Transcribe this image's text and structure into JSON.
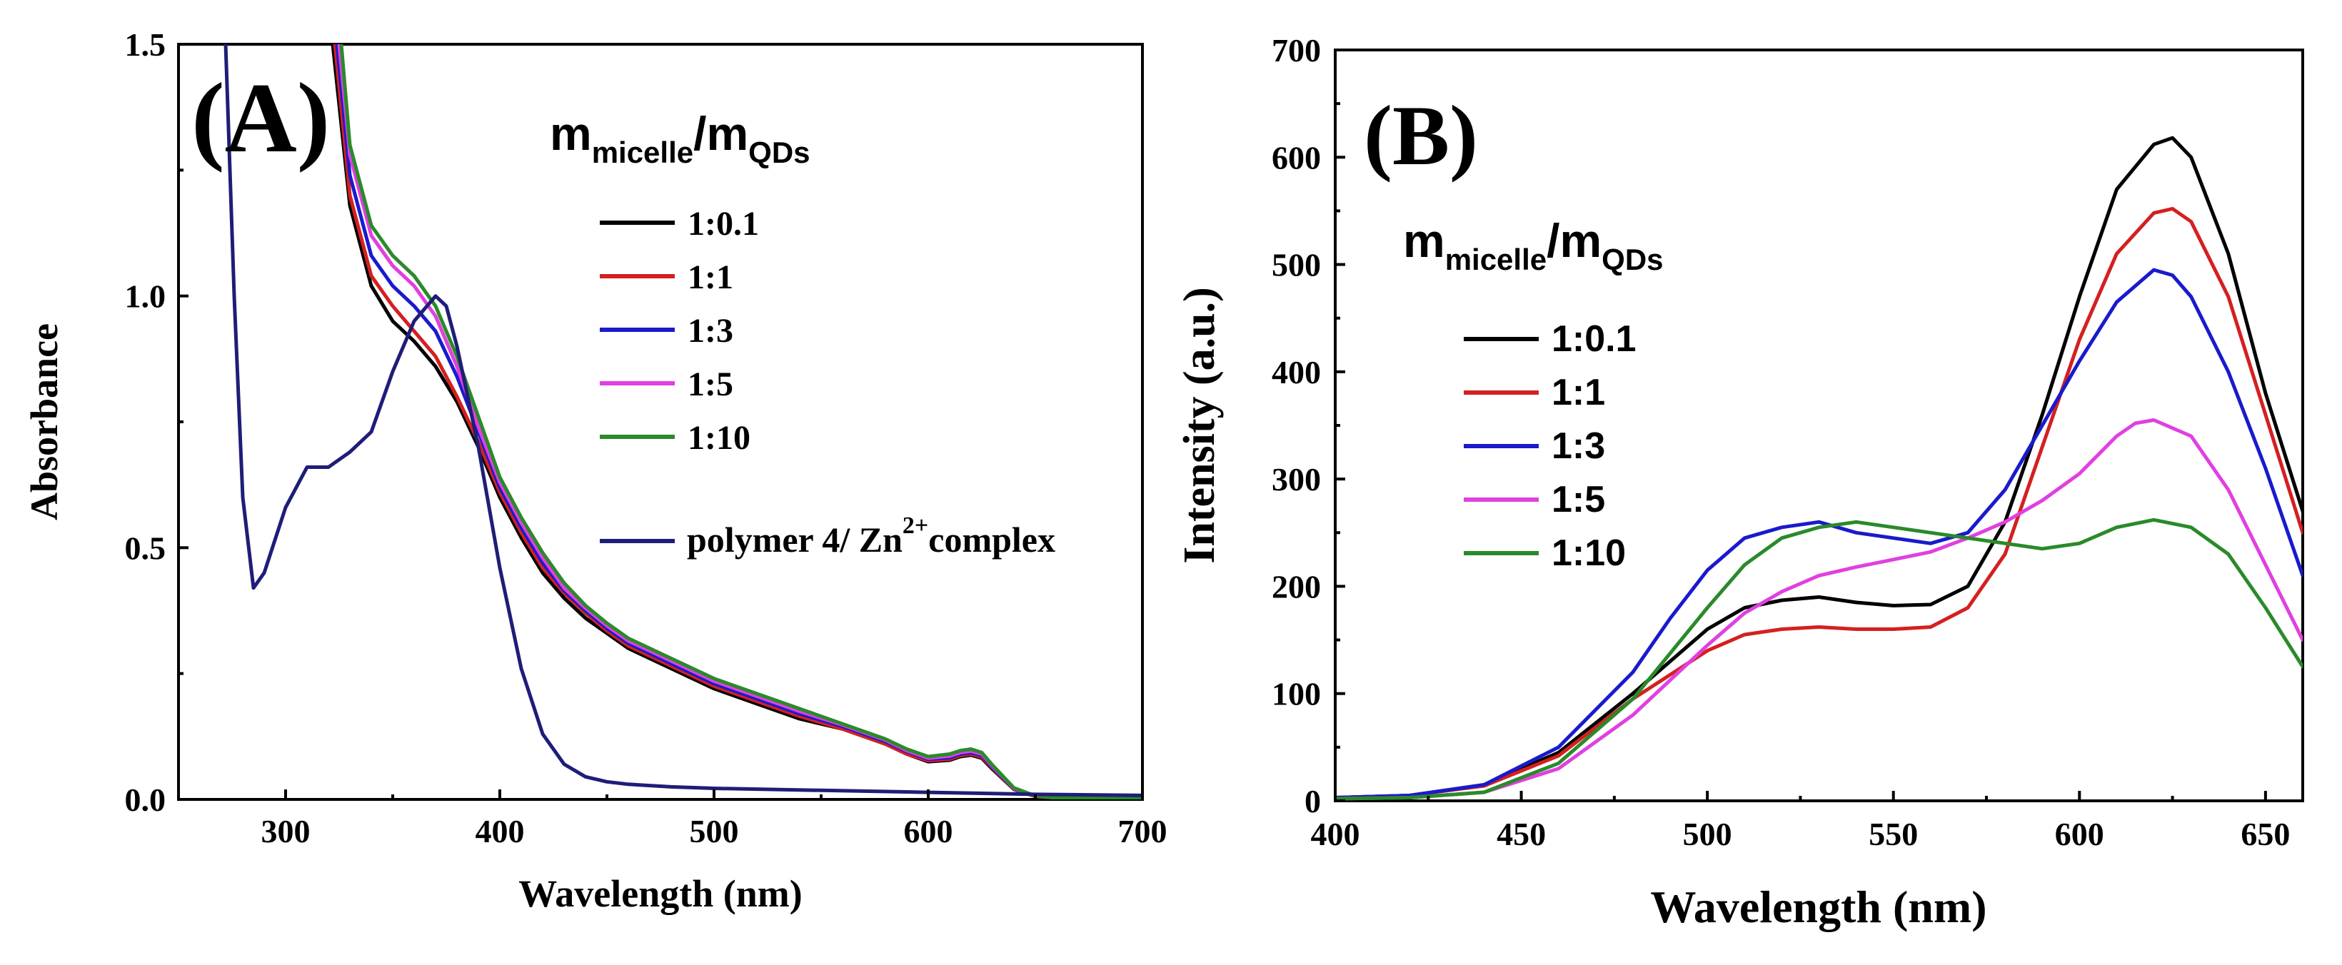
{
  "chart_data": [
    {
      "type": "line",
      "panel_label": "(A)",
      "xlabel": "Wavelength (nm)",
      "ylabel": "Absorbance",
      "xlim": [
        250,
        700
      ],
      "ylim": [
        0,
        1.5
      ],
      "xticks": [
        300,
        400,
        500,
        600,
        700
      ],
      "xtick_labels": [
        "300",
        "400",
        "500",
        "600",
        "700"
      ],
      "yticks": [
        0.0,
        0.5,
        1.0,
        1.5
      ],
      "ytick_labels": [
        "0.0",
        "0.5",
        "1.0",
        "1.5"
      ],
      "grid": false,
      "legend": {
        "title_main": "m",
        "title_sub1": "micelle",
        "title_slash": "/m",
        "title_sub2": "QDs",
        "placement": "top-right",
        "extra_label_main": "polymer 4/ Zn",
        "extra_label_sup": "2+",
        "extra_label_tail": "complex"
      },
      "series": [
        {
          "name": "1:0.1",
          "color": "#000000",
          "x": [
            322,
            330,
            340,
            350,
            360,
            370,
            380,
            390,
            400,
            410,
            420,
            430,
            440,
            450,
            460,
            480,
            500,
            520,
            540,
            560,
            580,
            590,
            600,
            610,
            615,
            620,
            625,
            630,
            640,
            650,
            660,
            680,
            700
          ],
          "y": [
            1.5,
            1.18,
            1.02,
            0.95,
            0.91,
            0.86,
            0.79,
            0.7,
            0.6,
            0.52,
            0.45,
            0.4,
            0.36,
            0.33,
            0.3,
            0.26,
            0.22,
            0.19,
            0.16,
            0.14,
            0.11,
            0.09,
            0.075,
            0.078,
            0.085,
            0.088,
            0.082,
            0.06,
            0.02,
            0.006,
            0.003,
            0.002,
            0.001
          ]
        },
        {
          "name": "1:1",
          "color": "#d42020",
          "x": [
            323,
            330,
            340,
            350,
            360,
            370,
            380,
            390,
            400,
            410,
            420,
            430,
            440,
            450,
            460,
            480,
            500,
            520,
            540,
            560,
            580,
            590,
            600,
            610,
            615,
            620,
            625,
            630,
            640,
            650,
            660,
            680,
            700
          ],
          "y": [
            1.5,
            1.2,
            1.04,
            0.98,
            0.93,
            0.88,
            0.8,
            0.71,
            0.61,
            0.53,
            0.46,
            0.41,
            0.37,
            0.335,
            0.305,
            0.265,
            0.225,
            0.195,
            0.165,
            0.14,
            0.11,
            0.09,
            0.077,
            0.08,
            0.087,
            0.09,
            0.084,
            0.062,
            0.02,
            0.006,
            0.003,
            0.002,
            0.001
          ]
        },
        {
          "name": "1:3",
          "color": "#1a1acc",
          "x": [
            324,
            330,
            340,
            350,
            360,
            370,
            380,
            390,
            400,
            410,
            420,
            430,
            440,
            450,
            460,
            480,
            500,
            520,
            540,
            560,
            580,
            590,
            600,
            610,
            615,
            620,
            625,
            630,
            640,
            650,
            660,
            680,
            700
          ],
          "y": [
            1.5,
            1.24,
            1.08,
            1.02,
            0.98,
            0.93,
            0.84,
            0.73,
            0.62,
            0.54,
            0.47,
            0.415,
            0.375,
            0.34,
            0.31,
            0.27,
            0.23,
            0.2,
            0.17,
            0.145,
            0.115,
            0.095,
            0.08,
            0.083,
            0.09,
            0.093,
            0.087,
            0.064,
            0.021,
            0.007,
            0.003,
            0.002,
            0.001
          ]
        },
        {
          "name": "1:5",
          "color": "#e040e0",
          "x": [
            325,
            330,
            340,
            350,
            360,
            370,
            380,
            390,
            400,
            410,
            420,
            430,
            440,
            450,
            460,
            480,
            500,
            520,
            540,
            560,
            580,
            590,
            600,
            610,
            615,
            620,
            625,
            630,
            640,
            650,
            660,
            680,
            700
          ],
          "y": [
            1.5,
            1.28,
            1.12,
            1.06,
            1.02,
            0.96,
            0.86,
            0.74,
            0.63,
            0.55,
            0.48,
            0.42,
            0.38,
            0.345,
            0.315,
            0.275,
            0.235,
            0.205,
            0.175,
            0.148,
            0.118,
            0.097,
            0.082,
            0.086,
            0.093,
            0.096,
            0.09,
            0.066,
            0.022,
            0.007,
            0.003,
            0.002,
            0.001
          ]
        },
        {
          "name": "1:10",
          "color": "#2a8a2a",
          "x": [
            326,
            330,
            340,
            350,
            360,
            370,
            380,
            390,
            400,
            410,
            420,
            430,
            440,
            450,
            460,
            480,
            500,
            520,
            540,
            560,
            580,
            590,
            600,
            610,
            615,
            620,
            625,
            630,
            640,
            650,
            660,
            680,
            700
          ],
          "y": [
            1.5,
            1.3,
            1.14,
            1.08,
            1.04,
            0.98,
            0.88,
            0.76,
            0.64,
            0.56,
            0.49,
            0.43,
            0.385,
            0.35,
            0.32,
            0.28,
            0.24,
            0.21,
            0.18,
            0.15,
            0.12,
            0.1,
            0.085,
            0.09,
            0.097,
            0.1,
            0.093,
            0.068,
            0.023,
            0.007,
            0.003,
            0.002,
            0.001
          ]
        },
        {
          "name": "polymer 4/ Zn2+complex",
          "color": "#1e1e78",
          "x": [
            272,
            276,
            280,
            285,
            290,
            300,
            310,
            315,
            320,
            330,
            340,
            350,
            360,
            370,
            375,
            380,
            390,
            400,
            410,
            420,
            430,
            440,
            450,
            460,
            480,
            500,
            550,
            600,
            650,
            700
          ],
          "y": [
            1.5,
            1.0,
            0.6,
            0.42,
            0.45,
            0.58,
            0.66,
            0.66,
            0.66,
            0.69,
            0.73,
            0.85,
            0.95,
            1.0,
            0.98,
            0.9,
            0.7,
            0.46,
            0.26,
            0.13,
            0.07,
            0.045,
            0.035,
            0.03,
            0.025,
            0.022,
            0.018,
            0.014,
            0.01,
            0.008
          ]
        }
      ]
    },
    {
      "type": "line",
      "panel_label": "(B)",
      "xlabel": "Wavelength (nm)",
      "ylabel": "Intensity (a.u.)",
      "xlim": [
        400,
        660
      ],
      "ylim": [
        0,
        700
      ],
      "xticks": [
        400,
        450,
        500,
        550,
        600,
        650
      ],
      "xtick_labels": [
        "400",
        "450",
        "500",
        "550",
        "600",
        "650"
      ],
      "yticks": [
        0,
        100,
        200,
        300,
        400,
        500,
        600,
        700
      ],
      "ytick_labels": [
        "0",
        "100",
        "200",
        "300",
        "400",
        "500",
        "600",
        "700"
      ],
      "grid": false,
      "legend": {
        "title_main": "m",
        "title_sub1": "micelle",
        "title_slash": "/m",
        "title_sub2": "QDs",
        "placement": "top-left"
      },
      "series": [
        {
          "name": "1:0.1",
          "color": "#000000",
          "x": [
            400,
            420,
            440,
            460,
            480,
            500,
            510,
            520,
            530,
            540,
            550,
            560,
            570,
            580,
            590,
            600,
            610,
            620,
            625,
            630,
            640,
            650,
            660
          ],
          "y": [
            3,
            5,
            15,
            45,
            100,
            160,
            180,
            187,
            190,
            185,
            182,
            183,
            200,
            260,
            360,
            470,
            570,
            612,
            618,
            600,
            510,
            380,
            270
          ]
        },
        {
          "name": "1:1",
          "color": "#d42020",
          "x": [
            400,
            420,
            440,
            460,
            480,
            500,
            510,
            520,
            530,
            540,
            550,
            560,
            570,
            580,
            590,
            600,
            610,
            620,
            625,
            630,
            640,
            650,
            660
          ],
          "y": [
            3,
            5,
            14,
            42,
            95,
            140,
            155,
            160,
            162,
            160,
            160,
            162,
            180,
            230,
            330,
            430,
            510,
            548,
            552,
            540,
            470,
            360,
            250
          ]
        },
        {
          "name": "1:3",
          "color": "#1a1acc",
          "x": [
            400,
            420,
            440,
            460,
            480,
            490,
            500,
            510,
            520,
            530,
            540,
            550,
            560,
            570,
            580,
            590,
            600,
            610,
            620,
            625,
            630,
            640,
            650,
            660
          ],
          "y": [
            3,
            5,
            15,
            50,
            120,
            170,
            215,
            245,
            255,
            260,
            250,
            245,
            240,
            250,
            290,
            350,
            410,
            465,
            495,
            490,
            470,
            400,
            310,
            210
          ]
        },
        {
          "name": "1:5",
          "color": "#e040e0",
          "x": [
            400,
            420,
            440,
            460,
            480,
            500,
            510,
            520,
            530,
            540,
            550,
            560,
            570,
            580,
            590,
            600,
            610,
            615,
            620,
            630,
            640,
            650,
            660
          ],
          "y": [
            2,
            3,
            8,
            30,
            80,
            145,
            175,
            195,
            210,
            218,
            225,
            232,
            245,
            260,
            280,
            305,
            340,
            352,
            355,
            340,
            290,
            220,
            150
          ]
        },
        {
          "name": "1:10",
          "color": "#2a8a2a",
          "x": [
            400,
            420,
            440,
            460,
            480,
            500,
            510,
            520,
            530,
            540,
            550,
            560,
            570,
            580,
            590,
            600,
            610,
            620,
            630,
            640,
            650,
            660
          ],
          "y": [
            2,
            3,
            8,
            35,
            95,
            180,
            220,
            245,
            255,
            260,
            255,
            250,
            245,
            240,
            235,
            240,
            255,
            262,
            255,
            230,
            180,
            125
          ]
        }
      ]
    }
  ]
}
